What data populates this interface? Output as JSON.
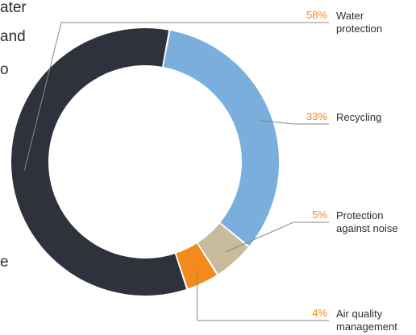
{
  "left_text": [
    "ater",
    "and",
    "o",
    "e"
  ],
  "chart_data": {
    "type": "pie",
    "title": "",
    "donut": true,
    "grid": false,
    "slices": [
      {
        "label": "Water protection",
        "label_lines": [
          "Water",
          "protection"
        ],
        "pct_text": "58%",
        "value": 58,
        "color": "#2f323d"
      },
      {
        "label": "Recycling",
        "label_lines": [
          "Recycling"
        ],
        "pct_text": "33%",
        "value": 33,
        "color": "#7aaedd"
      },
      {
        "label": "Protection against noise",
        "label_lines": [
          "Protection",
          "against noise"
        ],
        "pct_text": "5%",
        "value": 5,
        "color": "#c8bb9c"
      },
      {
        "label": "Air quality management",
        "label_lines": [
          "Air quality",
          "management"
        ],
        "pct_text": "4%",
        "value": 4,
        "color": "#f28a1c"
      }
    ],
    "leader_color": "#8a8a8a",
    "percent_color": "#f28a1c"
  }
}
